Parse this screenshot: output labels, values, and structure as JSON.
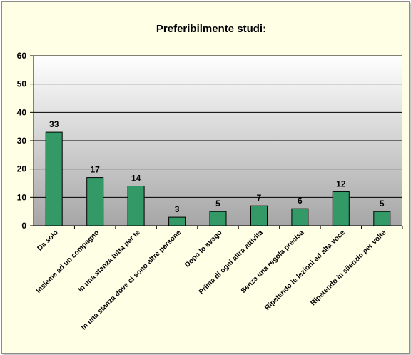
{
  "chart_data": {
    "type": "bar",
    "title": "Preferibilmente studi:",
    "categories": [
      "Da solo",
      "Insieme ad un compagno",
      "In una stanza tutta per te",
      "In una stanza dove ci sono altre persone",
      "Dopo lo svago",
      "Prima di ogni altra attività",
      "Senza una regola precisa",
      "Ripetendo le lezioni ad alta voce",
      "Ripetendo in silenzio per volte"
    ],
    "values": [
      33,
      17,
      14,
      3,
      5,
      7,
      6,
      12,
      5
    ],
    "ylim": [
      0,
      60
    ],
    "yticks": [
      0,
      10,
      20,
      30,
      40,
      50,
      60
    ],
    "grid": true,
    "legend": "none",
    "colors": {
      "bar": "#339966",
      "bar_border": "#000000",
      "frame_background": "#ffffe6",
      "plot_gradient_top": "#ffffff",
      "plot_gradient_bottom": "#a6a6a6"
    }
  }
}
